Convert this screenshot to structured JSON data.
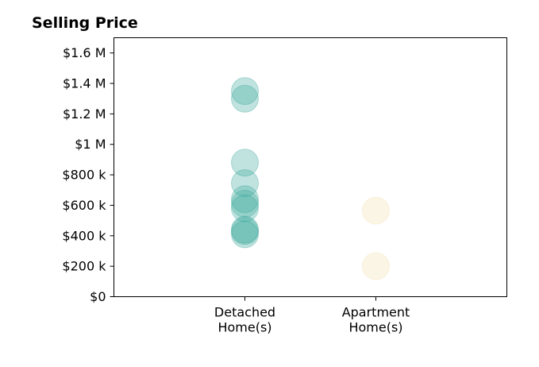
{
  "chart_data": {
    "type": "scatter",
    "title": "Selling Price",
    "xlabel": "",
    "ylabel": "",
    "categories": [
      "Detached\nHome(s)",
      "Apartment\nHome(s)"
    ],
    "xlim": [
      -1,
      2
    ],
    "ylim": [
      0,
      1700000
    ],
    "yticks": [
      0,
      200000,
      400000,
      600000,
      800000,
      1000000,
      1200000,
      1400000,
      1600000
    ],
    "ytick_labels": [
      "$0",
      "$200 k",
      "$400 k",
      "$600 k",
      "$800 k",
      "$1 M",
      "$1.2 M",
      "$1.4 M",
      "$1.6 M"
    ],
    "grid": false,
    "series": [
      {
        "category": 0,
        "color": "#3aa79a",
        "values": [
          1350000,
          1300000,
          880000,
          745000,
          640000,
          610000,
          580000,
          440000,
          430000,
          410000
        ]
      },
      {
        "category": 1,
        "color": "#f3dfae",
        "values": [
          565000,
          200000
        ]
      }
    ]
  }
}
